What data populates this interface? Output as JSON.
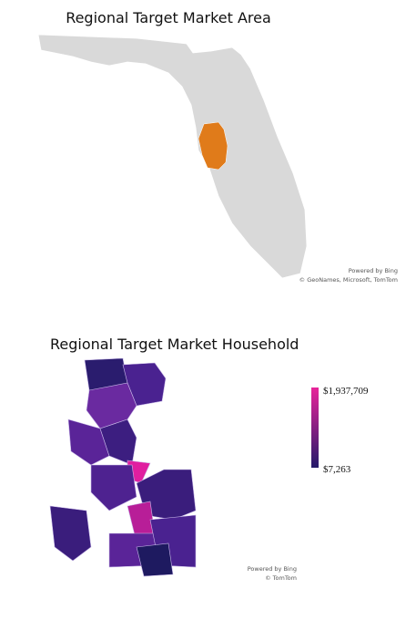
{
  "map_area": {
    "title": "Regional Target Market Area",
    "region_color": "#e07b1a",
    "base_color": "#d9d9d9",
    "credit_line1": "Powered by Bing",
    "credit_line2": "© GeoNames, Microsoft, TomTom"
  },
  "map_household": {
    "title": "Regional Target Market Household",
    "legend": {
      "max_label": "$1,937,709",
      "min_label": "$7,263",
      "max_color": "#e8249a",
      "min_color": "#241a6a"
    },
    "credit_line1": "Powered by Bing",
    "credit_line2": "© TomTom"
  }
}
